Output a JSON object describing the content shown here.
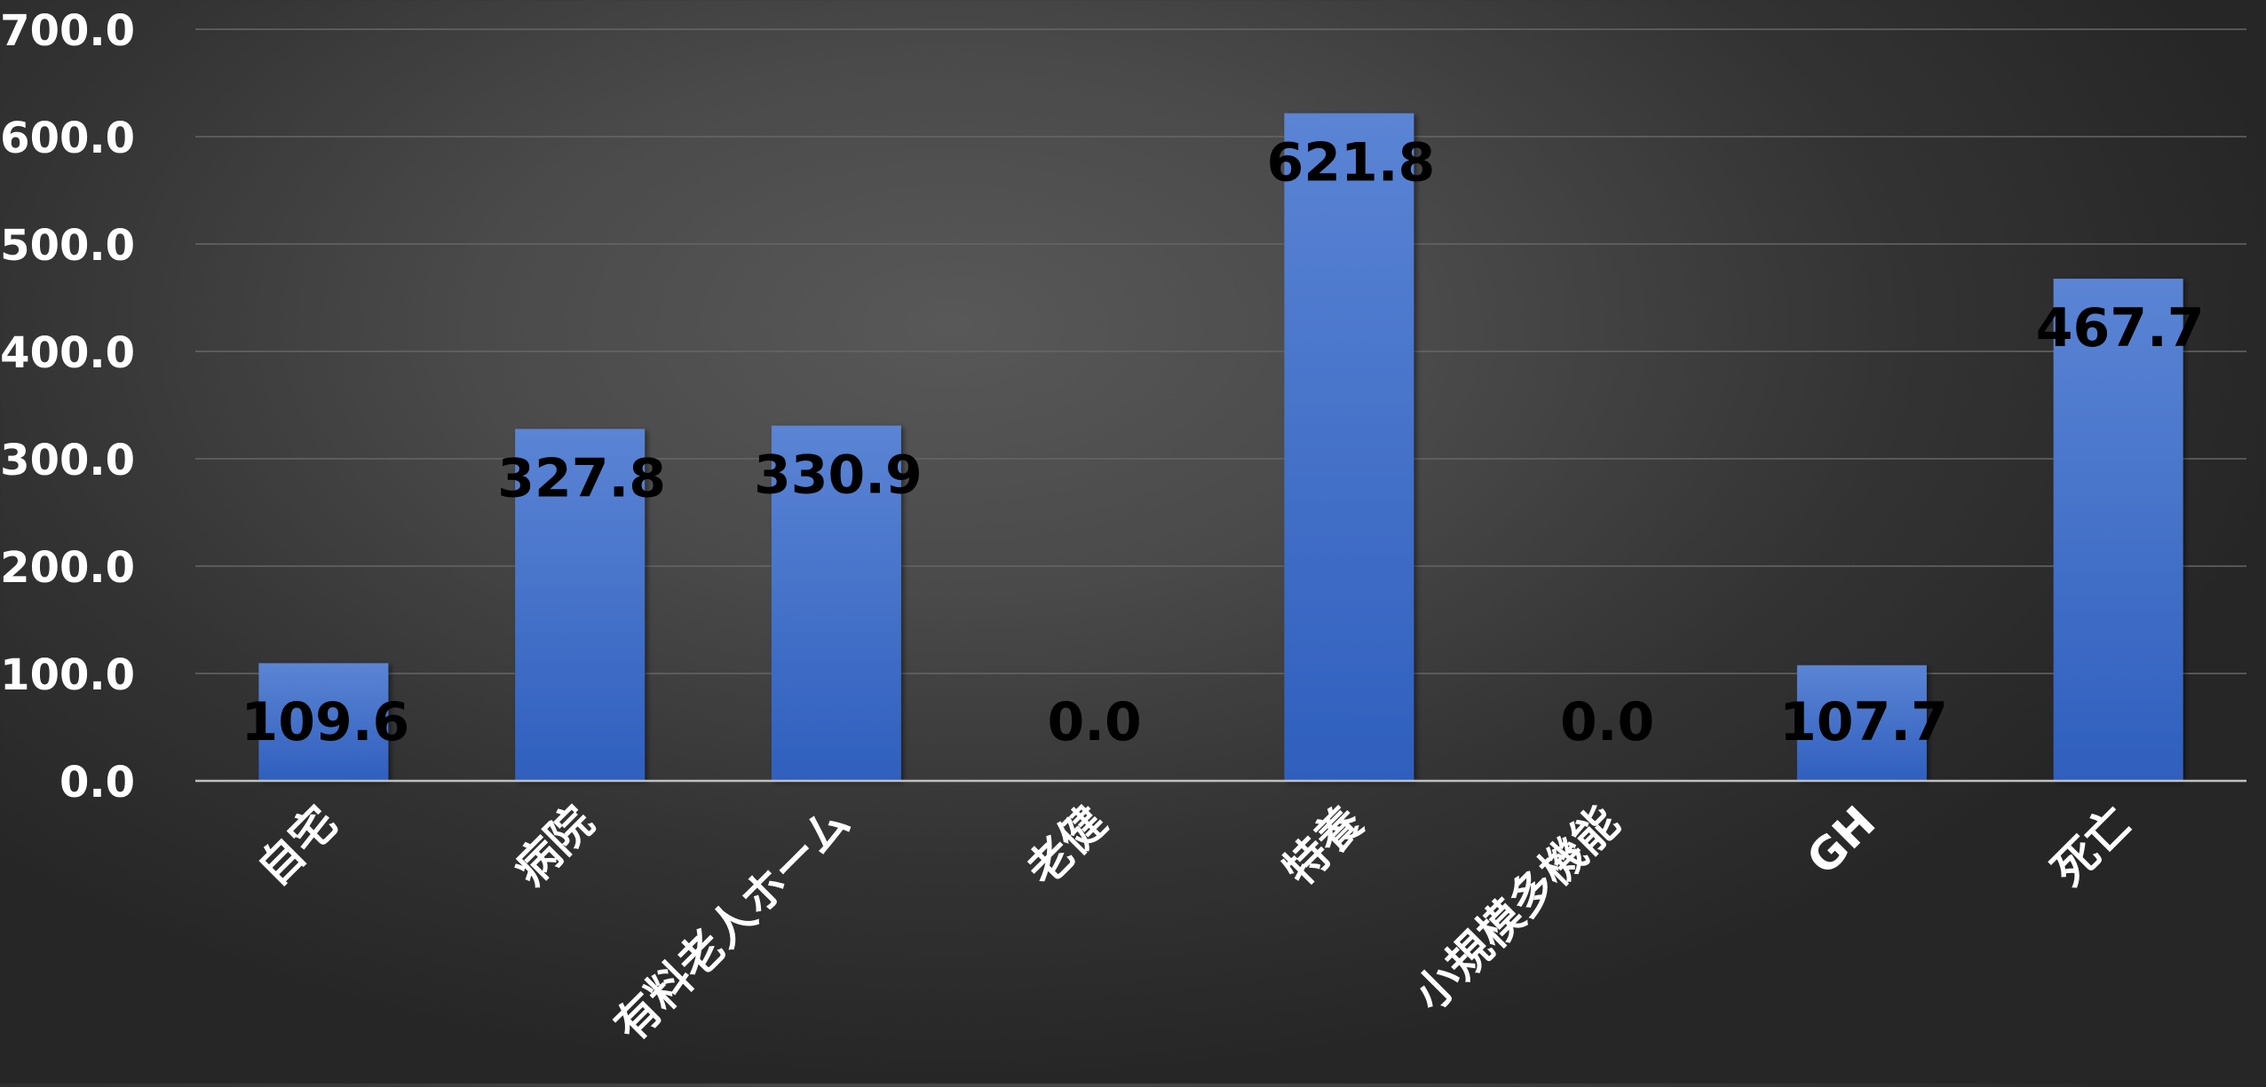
{
  "chart_data": {
    "type": "bar",
    "title": "",
    "xlabel": "",
    "ylabel": "",
    "categories": [
      "自宅",
      "病院",
      "有料老人ホーム",
      "老健",
      "特養",
      "小規模多機能",
      "GH",
      "死亡"
    ],
    "values": [
      109.6,
      327.8,
      330.9,
      0.0,
      621.8,
      0.0,
      107.7,
      467.7
    ],
    "data_labels": [
      "109.6",
      "327.8",
      "330.9",
      "0.0",
      "621.8",
      "0.0",
      "107.7",
      "467.7"
    ],
    "y_ticks": [
      "0.0",
      "100.0",
      "200.0",
      "300.0",
      "400.0",
      "500.0",
      "600.0",
      "700.0"
    ],
    "ylim": [
      0,
      700
    ],
    "grid": true,
    "legend": "none",
    "colors": {
      "bar_top": "#5b84d4",
      "bar_bottom": "#2f5fbe",
      "grid": "#666666",
      "axis_line": "#bfbfbf",
      "tick_label": "#ffffff",
      "category_label": "#ffffff",
      "data_label": "#000000"
    }
  }
}
